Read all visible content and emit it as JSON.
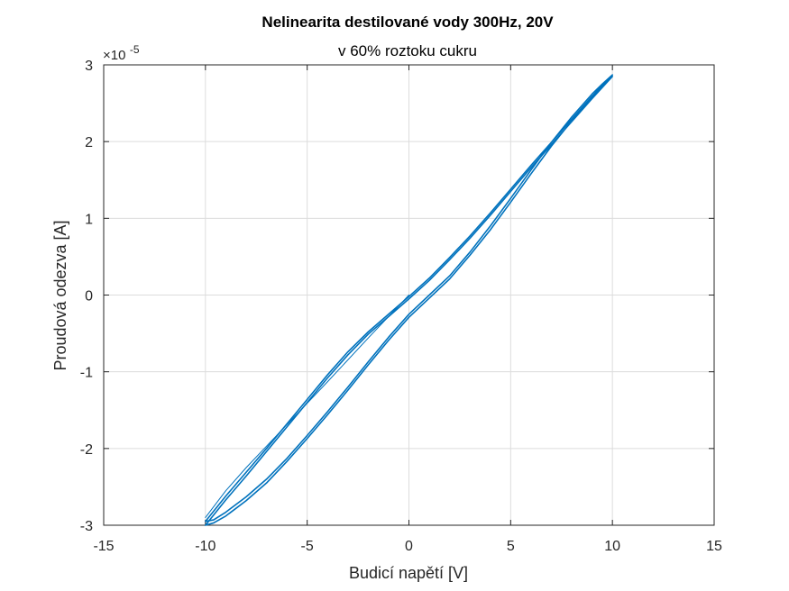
{
  "chart_data": {
    "type": "line",
    "title": "Nelinearita destilované vody 300Hz, 20V",
    "subtitle": "v 60% roztoku cukru",
    "xlabel": "Budicí napětí [V]",
    "ylabel": "Proudová odezva [A]",
    "xlim": [
      -15,
      15
    ],
    "ylim": [
      -3,
      3
    ],
    "y_exponent_base": "×10",
    "y_exponent_power": "-5",
    "x_ticks": [
      -15,
      -10,
      -5,
      0,
      5,
      10,
      15
    ],
    "y_ticks": [
      -3,
      -2,
      -1,
      0,
      1,
      2,
      3
    ],
    "x_tick_labels": [
      "-15",
      "-10",
      "-5",
      "0",
      "5",
      "10",
      "15"
    ],
    "y_tick_labels": [
      "-3",
      "-2",
      "-1",
      "0",
      "1",
      "2",
      "3"
    ],
    "grid": true,
    "line_color": "#0072bd",
    "series": [
      {
        "x": [
          -10,
          -9,
          -8,
          -7,
          -6,
          -5,
          -4,
          -3,
          -2,
          -1,
          0,
          1,
          2,
          3,
          4,
          5,
          6,
          7,
          8,
          9,
          10,
          9.5,
          9,
          8,
          7,
          6,
          5,
          4,
          3,
          2,
          1,
          0,
          -1,
          -2,
          -3,
          -4,
          -5,
          -6,
          -7,
          -8,
          -9,
          -9.6,
          -10
        ],
        "y": [
          -2.95,
          -2.62,
          -2.31,
          -2.0,
          -1.68,
          -1.36,
          -1.04,
          -0.74,
          -0.48,
          -0.25,
          -0.02,
          0.22,
          0.49,
          0.77,
          1.07,
          1.38,
          1.69,
          1.99,
          2.29,
          2.59,
          2.87,
          2.75,
          2.62,
          2.32,
          1.99,
          1.63,
          1.26,
          0.9,
          0.56,
          0.25,
          0.0,
          -0.25,
          -0.55,
          -0.87,
          -1.2,
          -1.52,
          -1.83,
          -2.13,
          -2.4,
          -2.63,
          -2.83,
          -2.93,
          -2.95
        ]
      },
      {
        "x": [
          -10,
          -9,
          -8,
          -7,
          -6,
          -5,
          -4,
          -3,
          -2,
          -1,
          0,
          1,
          2,
          3,
          4,
          5,
          6,
          7,
          8,
          9,
          10,
          9.5,
          9,
          8,
          7,
          6,
          5,
          4,
          3,
          2,
          1,
          0,
          -1,
          -2,
          -3,
          -4,
          -5,
          -6,
          -7,
          -8,
          -9,
          -9.6,
          -10
        ],
        "y": [
          -3.0,
          -2.67,
          -2.36,
          -2.04,
          -1.72,
          -1.4,
          -1.08,
          -0.78,
          -0.51,
          -0.28,
          -0.05,
          0.19,
          0.46,
          0.74,
          1.04,
          1.35,
          1.66,
          1.96,
          2.26,
          2.56,
          2.85,
          2.72,
          2.58,
          2.27,
          1.94,
          1.58,
          1.21,
          0.85,
          0.52,
          0.21,
          -0.04,
          -0.29,
          -0.59,
          -0.91,
          -1.24,
          -1.56,
          -1.87,
          -2.17,
          -2.45,
          -2.68,
          -2.88,
          -2.97,
          -3.0
        ]
      },
      {
        "x": [
          0,
          -2,
          -4,
          -6,
          -8,
          -9,
          -10
        ],
        "y": [
          0,
          -0.56,
          -1.13,
          -1.69,
          -2.25,
          -2.55,
          -2.9
        ]
      }
    ]
  }
}
